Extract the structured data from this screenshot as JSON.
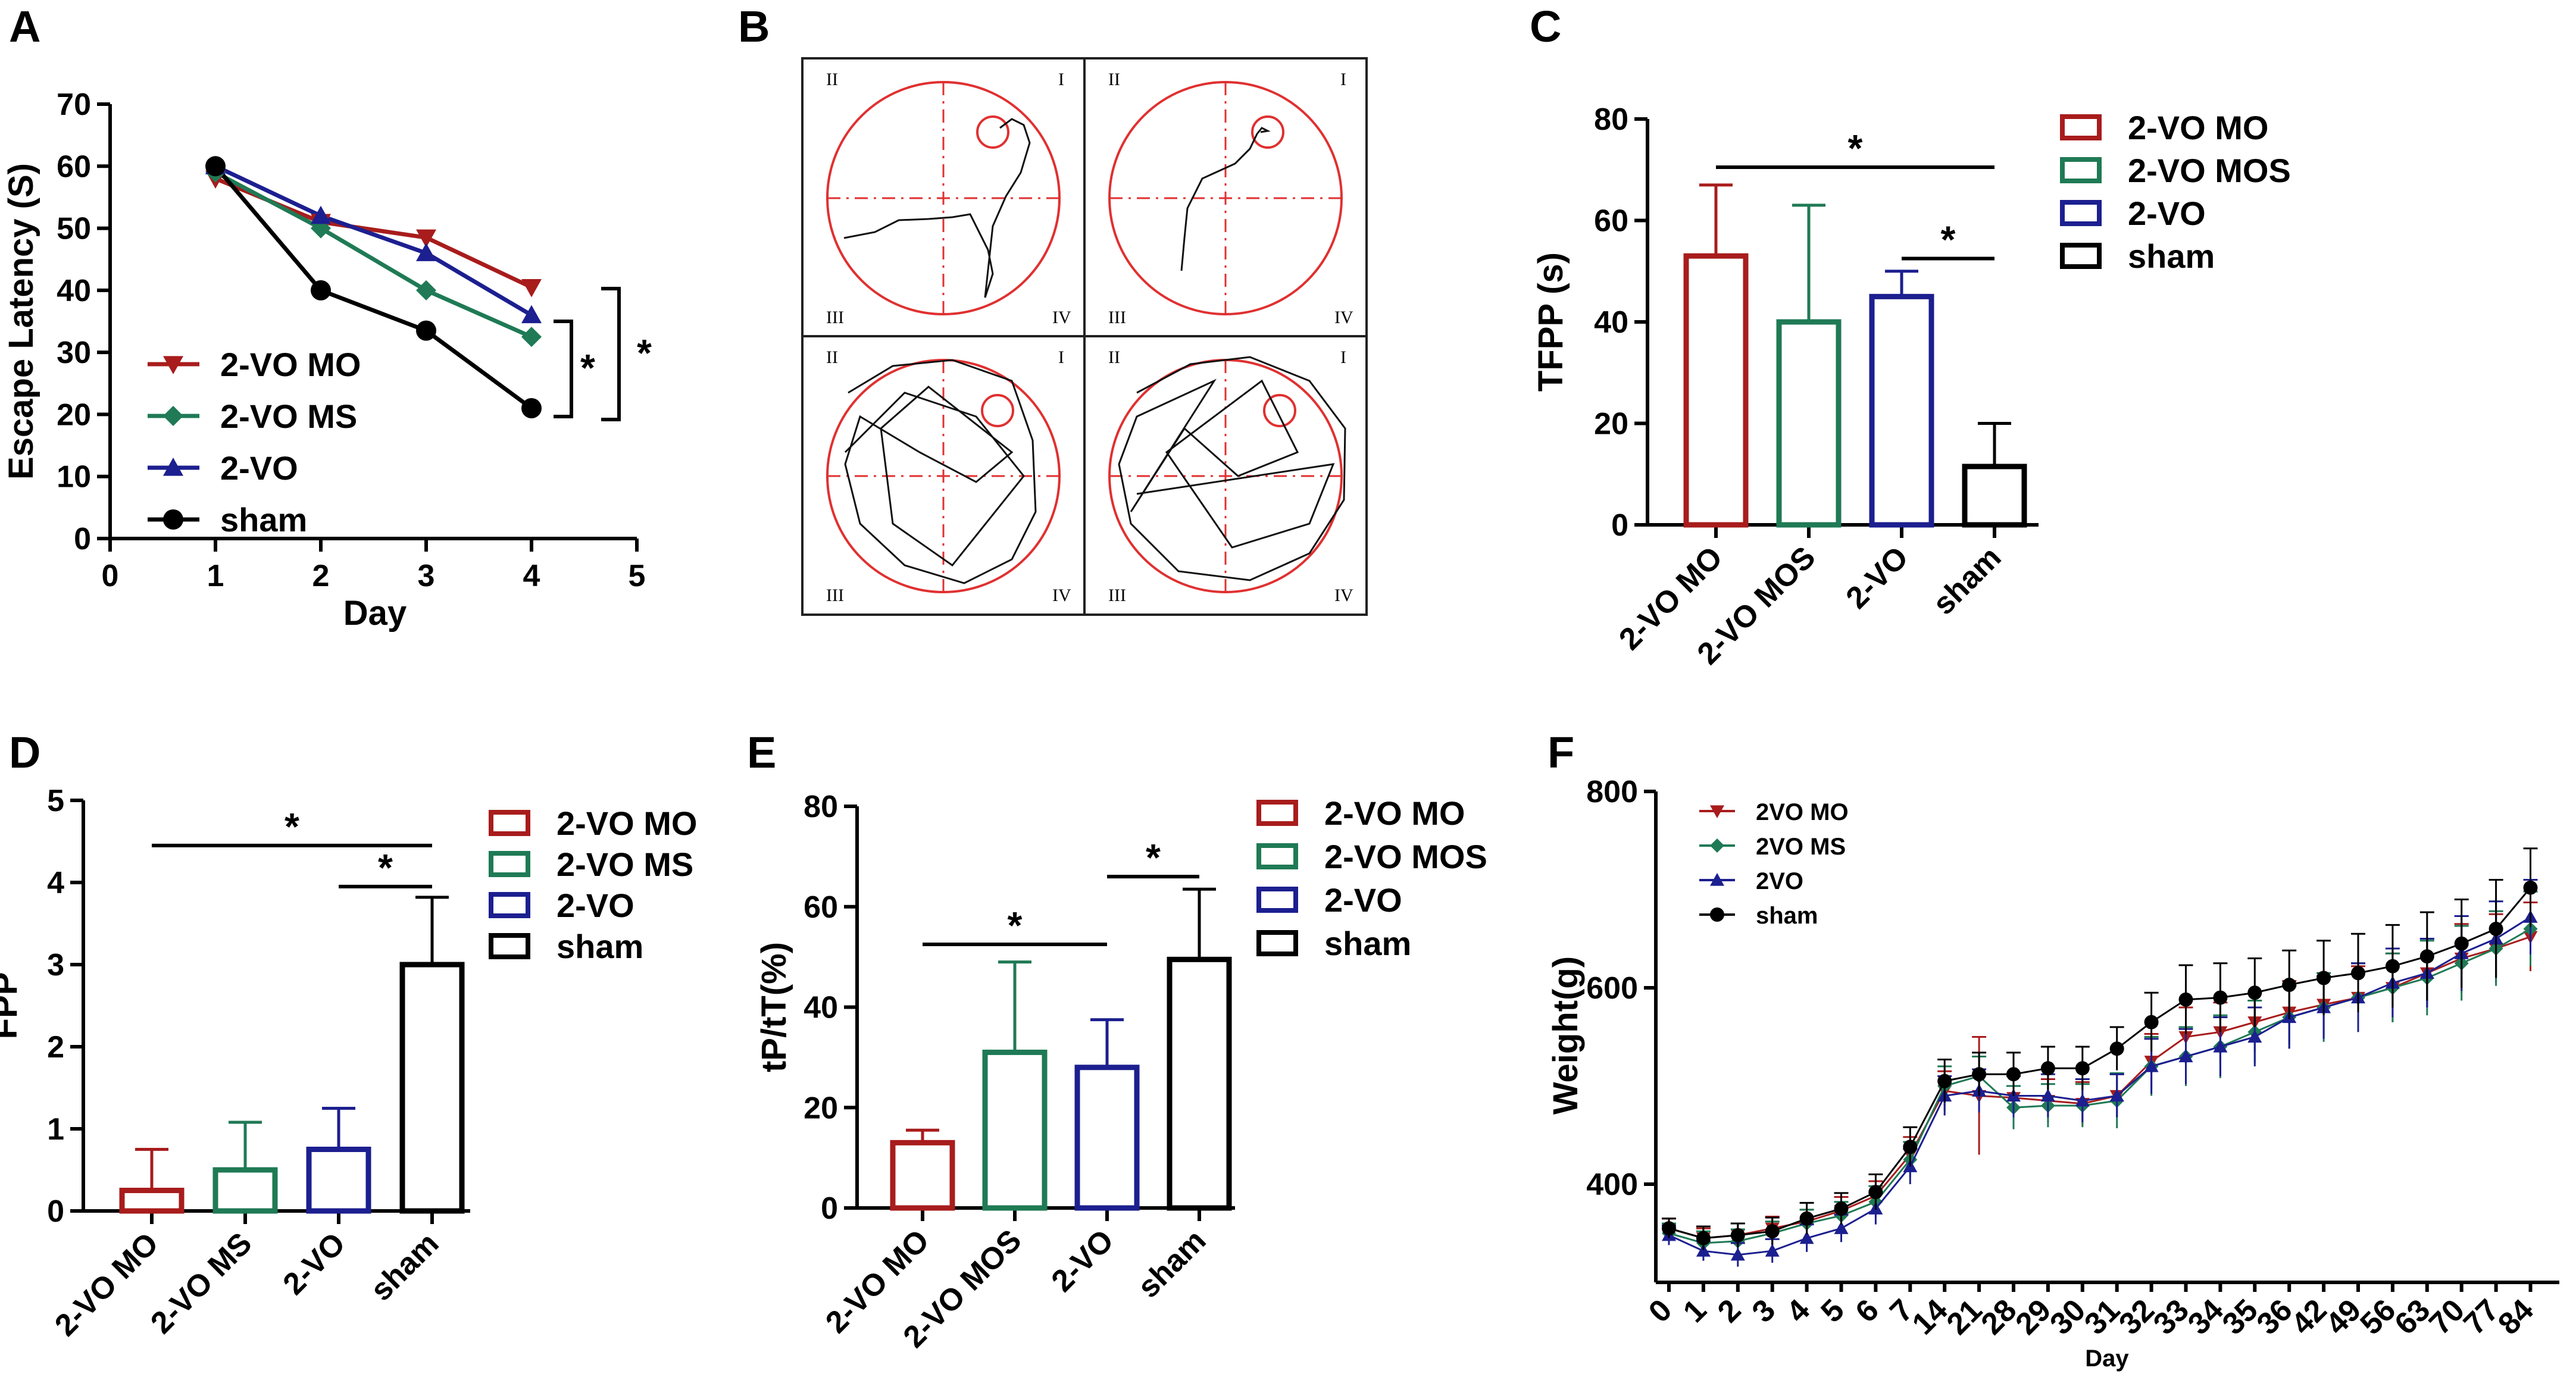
{
  "colors": {
    "mo": "#a81c1c",
    "ms": "#1f7a55",
    "vo": "#1c1f8f",
    "sham": "#000000",
    "maze": "#e03030"
  },
  "panels": {
    "a": "A",
    "b": "B",
    "c": "C",
    "d": "D",
    "e": "E",
    "f": "F"
  },
  "maze": {
    "quadrants": [
      "II",
      "I",
      "III",
      "IV"
    ]
  },
  "chart_data": [
    {
      "id": "A",
      "type": "line",
      "xlabel": "Day",
      "ylabel": "Escape Latency (S)",
      "xlim": [
        0,
        5
      ],
      "ylim": [
        0,
        70
      ],
      "xticks": [
        "0",
        "1",
        "2",
        "3",
        "4",
        "5"
      ],
      "yticks": [
        "0",
        "10",
        "20",
        "30",
        "40",
        "50",
        "60",
        "70"
      ],
      "x": [
        1,
        2,
        3,
        4
      ],
      "series": [
        {
          "name": "2-VO MO",
          "marker": "triangle-down",
          "color": "#a81c1c",
          "values": [
            58,
            51,
            48.5,
            40.5
          ]
        },
        {
          "name": "2-VO MS",
          "marker": "diamond",
          "color": "#1f7a55",
          "values": [
            59,
            50,
            40,
            32.5
          ]
        },
        {
          "name": "2-VO",
          "marker": "triangle-up",
          "color": "#1c1f8f",
          "values": [
            60,
            52,
            46,
            36
          ]
        },
        {
          "name": "sham",
          "marker": "circle",
          "color": "#000000",
          "values": [
            60,
            40,
            33.5,
            21
          ]
        }
      ],
      "significance": [
        "*",
        "*"
      ]
    },
    {
      "id": "C",
      "type": "bar",
      "ylabel": "TFPP (s)",
      "ylim": [
        0,
        80
      ],
      "yticks": [
        "0",
        "20",
        "40",
        "60",
        "80"
      ],
      "categories": [
        "2-VO MO",
        "2-VO MOS",
        "2-VO",
        "sham"
      ],
      "values": [
        53,
        40,
        45,
        11.5
      ],
      "errors": [
        14,
        23,
        5,
        8.5
      ],
      "legend": [
        "2-VO MO",
        "2-VO MOS",
        "2-VO",
        "sham"
      ],
      "significance": [
        "*",
        "*"
      ]
    },
    {
      "id": "D",
      "type": "bar",
      "ylabel": "FPP",
      "ylim": [
        0,
        5
      ],
      "yticks": [
        "0",
        "1",
        "2",
        "3",
        "4",
        "5"
      ],
      "categories": [
        "2-VO MO",
        "2-VO MS",
        "2-VO",
        "sham"
      ],
      "values": [
        0.25,
        0.5,
        0.75,
        3.0
      ],
      "errors": [
        0.5,
        0.58,
        0.5,
        0.82
      ],
      "legend": [
        "2-VO MO",
        "2-VO MS",
        "2-VO",
        "sham"
      ],
      "significance": [
        "*",
        "*"
      ]
    },
    {
      "id": "E",
      "type": "bar",
      "ylabel": "tP/tT(%)",
      "ylim": [
        0,
        80
      ],
      "yticks": [
        "0",
        "20",
        "40",
        "60",
        "80"
      ],
      "categories": [
        "2-VO MO",
        "2-VO MOS",
        "2-VO",
        "sham"
      ],
      "values": [
        13,
        31,
        28,
        49.5
      ],
      "errors": [
        2.5,
        18,
        9.5,
        14
      ],
      "legend": [
        "2-VO MO",
        "2-VO MOS",
        "2-VO",
        "sham"
      ],
      "significance": [
        "*",
        "*"
      ]
    },
    {
      "id": "F",
      "type": "line",
      "xlabel": "Day",
      "ylabel": "Weight(g)",
      "ylim": [
        300,
        800
      ],
      "yticks": [
        "400",
        "600",
        "800"
      ],
      "ytick_values": [
        400,
        600,
        800
      ],
      "categories": [
        "0",
        "1",
        "2",
        "3",
        "4",
        "5",
        "6",
        "7",
        "14",
        "21",
        "28",
        "29",
        "30",
        "31",
        "32",
        "33",
        "34",
        "35",
        "36",
        "42",
        "49",
        "56",
        "63",
        "70",
        "77",
        "84"
      ],
      "series": [
        {
          "name": "2VO MO",
          "marker": "triangle-down",
          "color": "#a81c1c",
          "values": [
            355,
            345,
            348,
            355,
            362,
            373,
            388,
            430,
            495,
            490,
            488,
            485,
            482,
            490,
            525,
            550,
            555,
            565,
            575,
            583,
            590,
            600,
            615,
            630,
            640,
            652
          ],
          "errors": [
            10,
            10,
            12,
            12,
            12,
            14,
            15,
            18,
            20,
            60,
            22,
            22,
            22,
            22,
            28,
            30,
            30,
            30,
            32,
            32,
            32,
            35,
            35,
            35,
            35,
            35
          ]
        },
        {
          "name": "2VO MS",
          "marker": "diamond",
          "color": "#1f7a55",
          "values": [
            350,
            340,
            342,
            350,
            360,
            368,
            382,
            425,
            500,
            510,
            478,
            480,
            480,
            485,
            520,
            530,
            540,
            555,
            570,
            580,
            590,
            600,
            610,
            625,
            640,
            660
          ],
          "errors": [
            10,
            12,
            12,
            12,
            14,
            14,
            16,
            18,
            20,
            20,
            22,
            22,
            22,
            28,
            30,
            30,
            32,
            32,
            32,
            35,
            35,
            35,
            38,
            38,
            38,
            38
          ]
        },
        {
          "name": "2VO",
          "marker": "triangle-up",
          "color": "#1c1f8f",
          "values": [
            348,
            332,
            328,
            332,
            345,
            355,
            375,
            418,
            490,
            495,
            490,
            490,
            485,
            490,
            520,
            530,
            540,
            550,
            570,
            580,
            590,
            605,
            615,
            635,
            650,
            672
          ],
          "errors": [
            10,
            10,
            12,
            12,
            14,
            14,
            16,
            18,
            20,
            22,
            22,
            22,
            22,
            22,
            28,
            28,
            30,
            30,
            32,
            32,
            35,
            35,
            35,
            38,
            38,
            38
          ]
        },
        {
          "name": "sham",
          "marker": "circle",
          "color": "#000000",
          "values": [
            355,
            345,
            348,
            352,
            365,
            375,
            392,
            438,
            505,
            512,
            512,
            518,
            518,
            538,
            565,
            588,
            590,
            595,
            603,
            610,
            615,
            622,
            632,
            645,
            660,
            702
          ],
          "errors": [
            10,
            12,
            12,
            14,
            16,
            16,
            18,
            20,
            22,
            22,
            22,
            22,
            22,
            22,
            30,
            35,
            35,
            35,
            35,
            38,
            40,
            42,
            45,
            45,
            50,
            40
          ]
        }
      ]
    }
  ]
}
